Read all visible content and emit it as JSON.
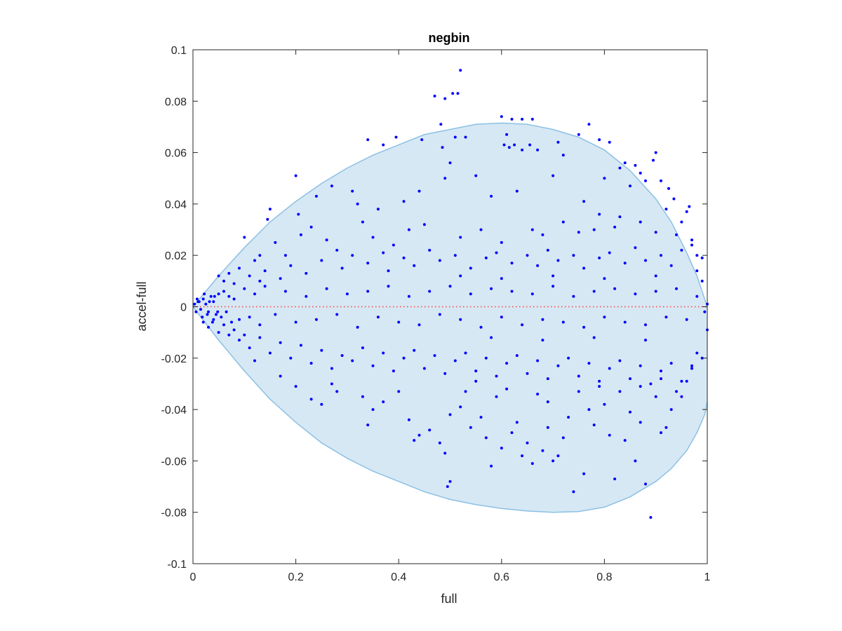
{
  "chart_data": {
    "type": "scatter",
    "title": "negbin",
    "xlabel": "full",
    "ylabel": "accel-full",
    "xlim": [
      0,
      1
    ],
    "ylim": [
      -0.1,
      0.1
    ],
    "xticks": [
      0,
      0.2,
      0.4,
      0.6,
      0.8,
      1
    ],
    "xtick_labels": [
      "0",
      "0.2",
      "0.4",
      "0.6",
      "0.8",
      "1"
    ],
    "yticks": [
      -0.1,
      -0.08,
      -0.06,
      -0.04,
      -0.02,
      0,
      0.02,
      0.04,
      0.06,
      0.08,
      0.1
    ],
    "ytick_labels": [
      "-0.1",
      "-0.08",
      "-0.06",
      "-0.04",
      "-0.02",
      "0",
      "0.02",
      "0.04",
      "0.06",
      "0.08",
      "0.1"
    ],
    "grid": false,
    "colors": {
      "points": "#0000ff",
      "region_fill": "#d6e8f4",
      "region_edge": "#8cc0e4",
      "zero_line": "#ff3b3b",
      "axes": "#262626"
    },
    "zero_line": {
      "y": 0,
      "style": "dotted"
    },
    "region": {
      "upper": [
        [
          0,
          0
        ],
        [
          0.05,
          0.012
        ],
        [
          0.1,
          0.023
        ],
        [
          0.15,
          0.033
        ],
        [
          0.2,
          0.041
        ],
        [
          0.25,
          0.048
        ],
        [
          0.3,
          0.054
        ],
        [
          0.35,
          0.059
        ],
        [
          0.4,
          0.063
        ],
        [
          0.45,
          0.067
        ],
        [
          0.5,
          0.069
        ],
        [
          0.55,
          0.071
        ],
        [
          0.6,
          0.0715
        ],
        [
          0.65,
          0.071
        ],
        [
          0.7,
          0.069
        ],
        [
          0.75,
          0.066
        ],
        [
          0.8,
          0.061
        ],
        [
          0.85,
          0.053
        ],
        [
          0.9,
          0.042
        ],
        [
          0.93,
          0.033
        ],
        [
          0.96,
          0.021
        ],
        [
          0.98,
          0.012
        ],
        [
          1.0,
          0.0
        ]
      ],
      "lower": [
        [
          0,
          0
        ],
        [
          0.05,
          -0.013
        ],
        [
          0.1,
          -0.025
        ],
        [
          0.15,
          -0.036
        ],
        [
          0.2,
          -0.045
        ],
        [
          0.25,
          -0.053
        ],
        [
          0.3,
          -0.059
        ],
        [
          0.35,
          -0.064
        ],
        [
          0.4,
          -0.068
        ],
        [
          0.45,
          -0.072
        ],
        [
          0.5,
          -0.075
        ],
        [
          0.55,
          -0.077
        ],
        [
          0.6,
          -0.0785
        ],
        [
          0.65,
          -0.0795
        ],
        [
          0.7,
          -0.08
        ],
        [
          0.75,
          -0.0797
        ],
        [
          0.8,
          -0.078
        ],
        [
          0.85,
          -0.074
        ],
        [
          0.9,
          -0.068
        ],
        [
          0.93,
          -0.063
        ],
        [
          0.96,
          -0.056
        ],
        [
          0.98,
          -0.049
        ],
        [
          0.995,
          -0.042
        ],
        [
          1.0,
          -0.037
        ]
      ]
    },
    "points": [
      [
        0.52,
        0.092
      ],
      [
        0.47,
        0.082
      ],
      [
        0.49,
        0.081
      ],
      [
        0.505,
        0.083
      ],
      [
        0.515,
        0.083
      ],
      [
        0.482,
        0.071
      ],
      [
        0.6,
        0.074
      ],
      [
        0.62,
        0.073
      ],
      [
        0.64,
        0.073
      ],
      [
        0.66,
        0.073
      ],
      [
        0.77,
        0.071
      ],
      [
        0.75,
        0.067
      ],
      [
        0.79,
        0.065
      ],
      [
        0.81,
        0.064
      ],
      [
        0.71,
        0.064
      ],
      [
        0.61,
        0.067
      ],
      [
        0.605,
        0.063
      ],
      [
        0.615,
        0.062
      ],
      [
        0.625,
        0.063
      ],
      [
        0.34,
        0.065
      ],
      [
        0.37,
        0.063
      ],
      [
        0.395,
        0.066
      ],
      [
        0.445,
        0.065
      ],
      [
        0.485,
        0.062
      ],
      [
        0.51,
        0.066
      ],
      [
        0.53,
        0.066
      ],
      [
        0.64,
        0.061
      ],
      [
        0.655,
        0.063
      ],
      [
        0.67,
        0.061
      ],
      [
        0.72,
        0.059
      ],
      [
        0.83,
        0.054
      ],
      [
        0.86,
        0.055
      ],
      [
        0.9,
        0.06
      ],
      [
        0.895,
        0.057
      ],
      [
        0.87,
        0.052
      ],
      [
        0.84,
        0.056
      ],
      [
        0.88,
        0.049
      ],
      [
        0.91,
        0.049
      ],
      [
        0.925,
        0.046
      ],
      [
        0.935,
        0.042
      ],
      [
        0.96,
        0.037
      ],
      [
        0.965,
        0.039
      ],
      [
        0.2,
        0.051
      ],
      [
        0.205,
        0.036
      ],
      [
        0.15,
        0.038
      ],
      [
        0.145,
        0.034
      ],
      [
        0.24,
        0.043
      ],
      [
        0.27,
        0.047
      ],
      [
        0.31,
        0.045
      ],
      [
        0.32,
        0.04
      ],
      [
        0.36,
        0.038
      ],
      [
        0.41,
        0.041
      ],
      [
        0.44,
        0.045
      ],
      [
        0.49,
        0.05
      ],
      [
        0.5,
        0.056
      ],
      [
        0.55,
        0.051
      ],
      [
        0.58,
        0.043
      ],
      [
        0.63,
        0.045
      ],
      [
        0.7,
        0.051
      ],
      [
        0.76,
        0.041
      ],
      [
        0.8,
        0.05
      ],
      [
        0.79,
        0.036
      ],
      [
        0.83,
        0.035
      ],
      [
        0.85,
        0.047
      ],
      [
        0.92,
        0.038
      ],
      [
        0.95,
        0.033
      ],
      [
        0.97,
        0.026
      ],
      [
        0.98,
        0.02
      ],
      [
        0.99,
        0.019
      ],
      [
        0.1,
        0.027
      ],
      [
        0.12,
        0.018
      ],
      [
        0.13,
        0.02
      ],
      [
        0.16,
        0.025
      ],
      [
        0.18,
        0.02
      ],
      [
        0.21,
        0.028
      ],
      [
        0.23,
        0.031
      ],
      [
        0.26,
        0.026
      ],
      [
        0.28,
        0.022
      ],
      [
        0.33,
        0.033
      ],
      [
        0.35,
        0.027
      ],
      [
        0.39,
        0.024
      ],
      [
        0.42,
        0.03
      ],
      [
        0.45,
        0.032
      ],
      [
        0.52,
        0.027
      ],
      [
        0.56,
        0.03
      ],
      [
        0.6,
        0.025
      ],
      [
        0.66,
        0.03
      ],
      [
        0.68,
        0.028
      ],
      [
        0.72,
        0.033
      ],
      [
        0.75,
        0.029
      ],
      [
        0.78,
        0.03
      ],
      [
        0.82,
        0.031
      ],
      [
        0.87,
        0.033
      ],
      [
        0.9,
        0.029
      ],
      [
        0.94,
        0.028
      ],
      [
        0.97,
        0.024
      ],
      [
        0.05,
        0.012
      ],
      [
        0.06,
        0.01
      ],
      [
        0.07,
        0.013
      ],
      [
        0.08,
        0.009
      ],
      [
        0.09,
        0.015
      ],
      [
        0.11,
        0.012
      ],
      [
        0.13,
        0.01
      ],
      [
        0.14,
        0.014
      ],
      [
        0.17,
        0.011
      ],
      [
        0.19,
        0.016
      ],
      [
        0.22,
        0.013
      ],
      [
        0.25,
        0.018
      ],
      [
        0.29,
        0.015
      ],
      [
        0.31,
        0.02
      ],
      [
        0.34,
        0.017
      ],
      [
        0.37,
        0.021
      ],
      [
        0.38,
        0.014
      ],
      [
        0.41,
        0.019
      ],
      [
        0.43,
        0.016
      ],
      [
        0.46,
        0.022
      ],
      [
        0.48,
        0.018
      ],
      [
        0.51,
        0.02
      ],
      [
        0.54,
        0.015
      ],
      [
        0.57,
        0.019
      ],
      [
        0.59,
        0.021
      ],
      [
        0.62,
        0.017
      ],
      [
        0.65,
        0.02
      ],
      [
        0.67,
        0.016
      ],
      [
        0.69,
        0.022
      ],
      [
        0.71,
        0.018
      ],
      [
        0.74,
        0.02
      ],
      [
        0.76,
        0.015
      ],
      [
        0.79,
        0.019
      ],
      [
        0.81,
        0.021
      ],
      [
        0.84,
        0.017
      ],
      [
        0.86,
        0.023
      ],
      [
        0.88,
        0.018
      ],
      [
        0.91,
        0.02
      ],
      [
        0.93,
        0.016
      ],
      [
        0.95,
        0.022
      ],
      [
        0.98,
        0.014
      ],
      [
        0.99,
        0.01
      ],
      [
        0.01,
        0.002
      ],
      [
        0.015,
        -0.001
      ],
      [
        0.02,
        0.003
      ],
      [
        0.025,
        0.001
      ],
      [
        0.03,
        -0.002
      ],
      [
        0.035,
        0.004
      ],
      [
        0.04,
        0.002
      ],
      [
        0.045,
        -0.003
      ],
      [
        0.05,
        0.005
      ],
      [
        0.055,
        -0.004
      ],
      [
        0.06,
        0.006
      ],
      [
        0.065,
        -0.002
      ],
      [
        0.07,
        0.004
      ],
      [
        0.075,
        -0.006
      ],
      [
        0.08,
        0.003
      ],
      [
        0.09,
        -0.005
      ],
      [
        0.1,
        0.007
      ],
      [
        0.11,
        -0.004
      ],
      [
        0.12,
        0.005
      ],
      [
        0.13,
        -0.007
      ],
      [
        0.14,
        0.008
      ],
      [
        0.16,
        -0.003
      ],
      [
        0.18,
        0.006
      ],
      [
        0.2,
        -0.006
      ],
      [
        0.22,
        0.004
      ],
      [
        0.24,
        -0.005
      ],
      [
        0.26,
        0.007
      ],
      [
        0.28,
        -0.003
      ],
      [
        0.3,
        0.005
      ],
      [
        0.32,
        -0.008
      ],
      [
        0.34,
        0.006
      ],
      [
        0.36,
        -0.004
      ],
      [
        0.38,
        0.008
      ],
      [
        0.4,
        -0.006
      ],
      [
        0.42,
        0.004
      ],
      [
        0.44,
        -0.007
      ],
      [
        0.46,
        0.006
      ],
      [
        0.48,
        -0.003
      ],
      [
        0.5,
        0.008
      ],
      [
        0.52,
        -0.005
      ],
      [
        0.54,
        0.005
      ],
      [
        0.56,
        -0.008
      ],
      [
        0.58,
        0.007
      ],
      [
        0.6,
        -0.004
      ],
      [
        0.62,
        0.006
      ],
      [
        0.64,
        -0.007
      ],
      [
        0.66,
        0.005
      ],
      [
        0.68,
        -0.005
      ],
      [
        0.7,
        0.008
      ],
      [
        0.72,
        -0.006
      ],
      [
        0.74,
        0.004
      ],
      [
        0.76,
        -0.008
      ],
      [
        0.78,
        0.006
      ],
      [
        0.8,
        -0.004
      ],
      [
        0.82,
        0.007
      ],
      [
        0.84,
        -0.006
      ],
      [
        0.86,
        0.005
      ],
      [
        0.88,
        -0.007
      ],
      [
        0.9,
        0.006
      ],
      [
        0.92,
        -0.004
      ],
      [
        0.94,
        0.007
      ],
      [
        0.96,
        -0.005
      ],
      [
        0.98,
        0.004
      ],
      [
        0.995,
        -0.002
      ],
      [
        1.0,
        0.001
      ],
      [
        1.0,
        -0.009
      ],
      [
        0.07,
        -0.011
      ],
      [
        0.09,
        -0.013
      ],
      [
        0.11,
        -0.016
      ],
      [
        0.13,
        -0.012
      ],
      [
        0.15,
        -0.018
      ],
      [
        0.17,
        -0.014
      ],
      [
        0.19,
        -0.02
      ],
      [
        0.21,
        -0.015
      ],
      [
        0.23,
        -0.022
      ],
      [
        0.25,
        -0.017
      ],
      [
        0.27,
        -0.024
      ],
      [
        0.29,
        -0.019
      ],
      [
        0.31,
        -0.021
      ],
      [
        0.33,
        -0.016
      ],
      [
        0.35,
        -0.023
      ],
      [
        0.37,
        -0.018
      ],
      [
        0.39,
        -0.025
      ],
      [
        0.41,
        -0.02
      ],
      [
        0.43,
        -0.017
      ],
      [
        0.45,
        -0.024
      ],
      [
        0.47,
        -0.019
      ],
      [
        0.49,
        -0.026
      ],
      [
        0.51,
        -0.021
      ],
      [
        0.53,
        -0.018
      ],
      [
        0.55,
        -0.025
      ],
      [
        0.57,
        -0.02
      ],
      [
        0.59,
        -0.027
      ],
      [
        0.61,
        -0.022
      ],
      [
        0.63,
        -0.019
      ],
      [
        0.65,
        -0.026
      ],
      [
        0.67,
        -0.021
      ],
      [
        0.69,
        -0.028
      ],
      [
        0.71,
        -0.023
      ],
      [
        0.73,
        -0.02
      ],
      [
        0.75,
        -0.027
      ],
      [
        0.77,
        -0.022
      ],
      [
        0.79,
        -0.029
      ],
      [
        0.81,
        -0.024
      ],
      [
        0.83,
        -0.021
      ],
      [
        0.85,
        -0.028
      ],
      [
        0.87,
        -0.023
      ],
      [
        0.89,
        -0.03
      ],
      [
        0.91,
        -0.025
      ],
      [
        0.93,
        -0.022
      ],
      [
        0.95,
        -0.029
      ],
      [
        0.97,
        -0.024
      ],
      [
        0.99,
        -0.02
      ],
      [
        0.12,
        -0.021
      ],
      [
        0.17,
        -0.027
      ],
      [
        0.2,
        -0.031
      ],
      [
        0.23,
        -0.036
      ],
      [
        0.25,
        -0.038
      ],
      [
        0.27,
        -0.03
      ],
      [
        0.28,
        -0.033
      ],
      [
        0.33,
        -0.035
      ],
      [
        0.34,
        -0.046
      ],
      [
        0.35,
        -0.04
      ],
      [
        0.37,
        -0.037
      ],
      [
        0.4,
        -0.033
      ],
      [
        0.42,
        -0.044
      ],
      [
        0.43,
        -0.052
      ],
      [
        0.44,
        -0.05
      ],
      [
        0.46,
        -0.048
      ],
      [
        0.48,
        -0.053
      ],
      [
        0.5,
        -0.042
      ],
      [
        0.52,
        -0.039
      ],
      [
        0.54,
        -0.047
      ],
      [
        0.56,
        -0.043
      ],
      [
        0.57,
        -0.051
      ],
      [
        0.58,
        -0.062
      ],
      [
        0.6,
        -0.055
      ],
      [
        0.62,
        -0.049
      ],
      [
        0.63,
        -0.045
      ],
      [
        0.64,
        -0.058
      ],
      [
        0.65,
        -0.053
      ],
      [
        0.66,
        -0.061
      ],
      [
        0.68,
        -0.056
      ],
      [
        0.69,
        -0.047
      ],
      [
        0.7,
        -0.06
      ],
      [
        0.71,
        -0.058
      ],
      [
        0.72,
        -0.051
      ],
      [
        0.73,
        -0.043
      ],
      [
        0.74,
        -0.072
      ],
      [
        0.76,
        -0.065
      ],
      [
        0.77,
        -0.04
      ],
      [
        0.78,
        -0.046
      ],
      [
        0.8,
        -0.038
      ],
      [
        0.81,
        -0.05
      ],
      [
        0.82,
        -0.067
      ],
      [
        0.84,
        -0.052
      ],
      [
        0.85,
        -0.041
      ],
      [
        0.86,
        -0.06
      ],
      [
        0.87,
        -0.045
      ],
      [
        0.88,
        -0.069
      ],
      [
        0.89,
        -0.082
      ],
      [
        0.9,
        -0.035
      ],
      [
        0.91,
        -0.049
      ],
      [
        0.92,
        -0.047
      ],
      [
        0.93,
        -0.04
      ],
      [
        0.95,
        -0.035
      ],
      [
        0.96,
        -0.029
      ],
      [
        0.97,
        -0.023
      ],
      [
        0.98,
        -0.018
      ],
      [
        0.49,
        -0.057
      ],
      [
        0.5,
        -0.068
      ],
      [
        0.495,
        -0.07
      ],
      [
        0.53,
        -0.033
      ],
      [
        0.55,
        -0.029
      ],
      [
        0.59,
        -0.035
      ],
      [
        0.61,
        -0.032
      ],
      [
        0.67,
        -0.034
      ],
      [
        0.69,
        -0.037
      ],
      [
        0.75,
        -0.033
      ],
      [
        0.79,
        -0.031
      ],
      [
        0.83,
        -0.033
      ],
      [
        0.87,
        -0.031
      ],
      [
        0.91,
        -0.028
      ],
      [
        0.94,
        -0.033
      ],
      [
        0.02,
        -0.006
      ],
      [
        0.03,
        -0.008
      ],
      [
        0.04,
        -0.005
      ],
      [
        0.05,
        -0.01
      ],
      [
        0.06,
        -0.007
      ],
      [
        0.08,
        -0.009
      ],
      [
        0.1,
        -0.011
      ],
      [
        0.003,
        0.001
      ],
      [
        0.006,
        -0.002
      ],
      [
        0.008,
        0.003
      ],
      [
        0.012,
        0.002
      ],
      [
        0.018,
        -0.004
      ],
      [
        0.022,
        0.005
      ],
      [
        0.028,
        -0.003
      ],
      [
        0.032,
        0.002
      ],
      [
        0.038,
        -0.006
      ],
      [
        0.042,
        0.004
      ],
      [
        0.048,
        -0.002
      ],
      [
        0.52,
        0.012
      ],
      [
        0.6,
        0.011
      ],
      [
        0.7,
        0.012
      ],
      [
        0.8,
        0.011
      ],
      [
        0.9,
        0.012
      ],
      [
        0.58,
        -0.012
      ],
      [
        0.68,
        -0.013
      ],
      [
        0.78,
        -0.012
      ],
      [
        0.88,
        -0.013
      ]
    ]
  }
}
